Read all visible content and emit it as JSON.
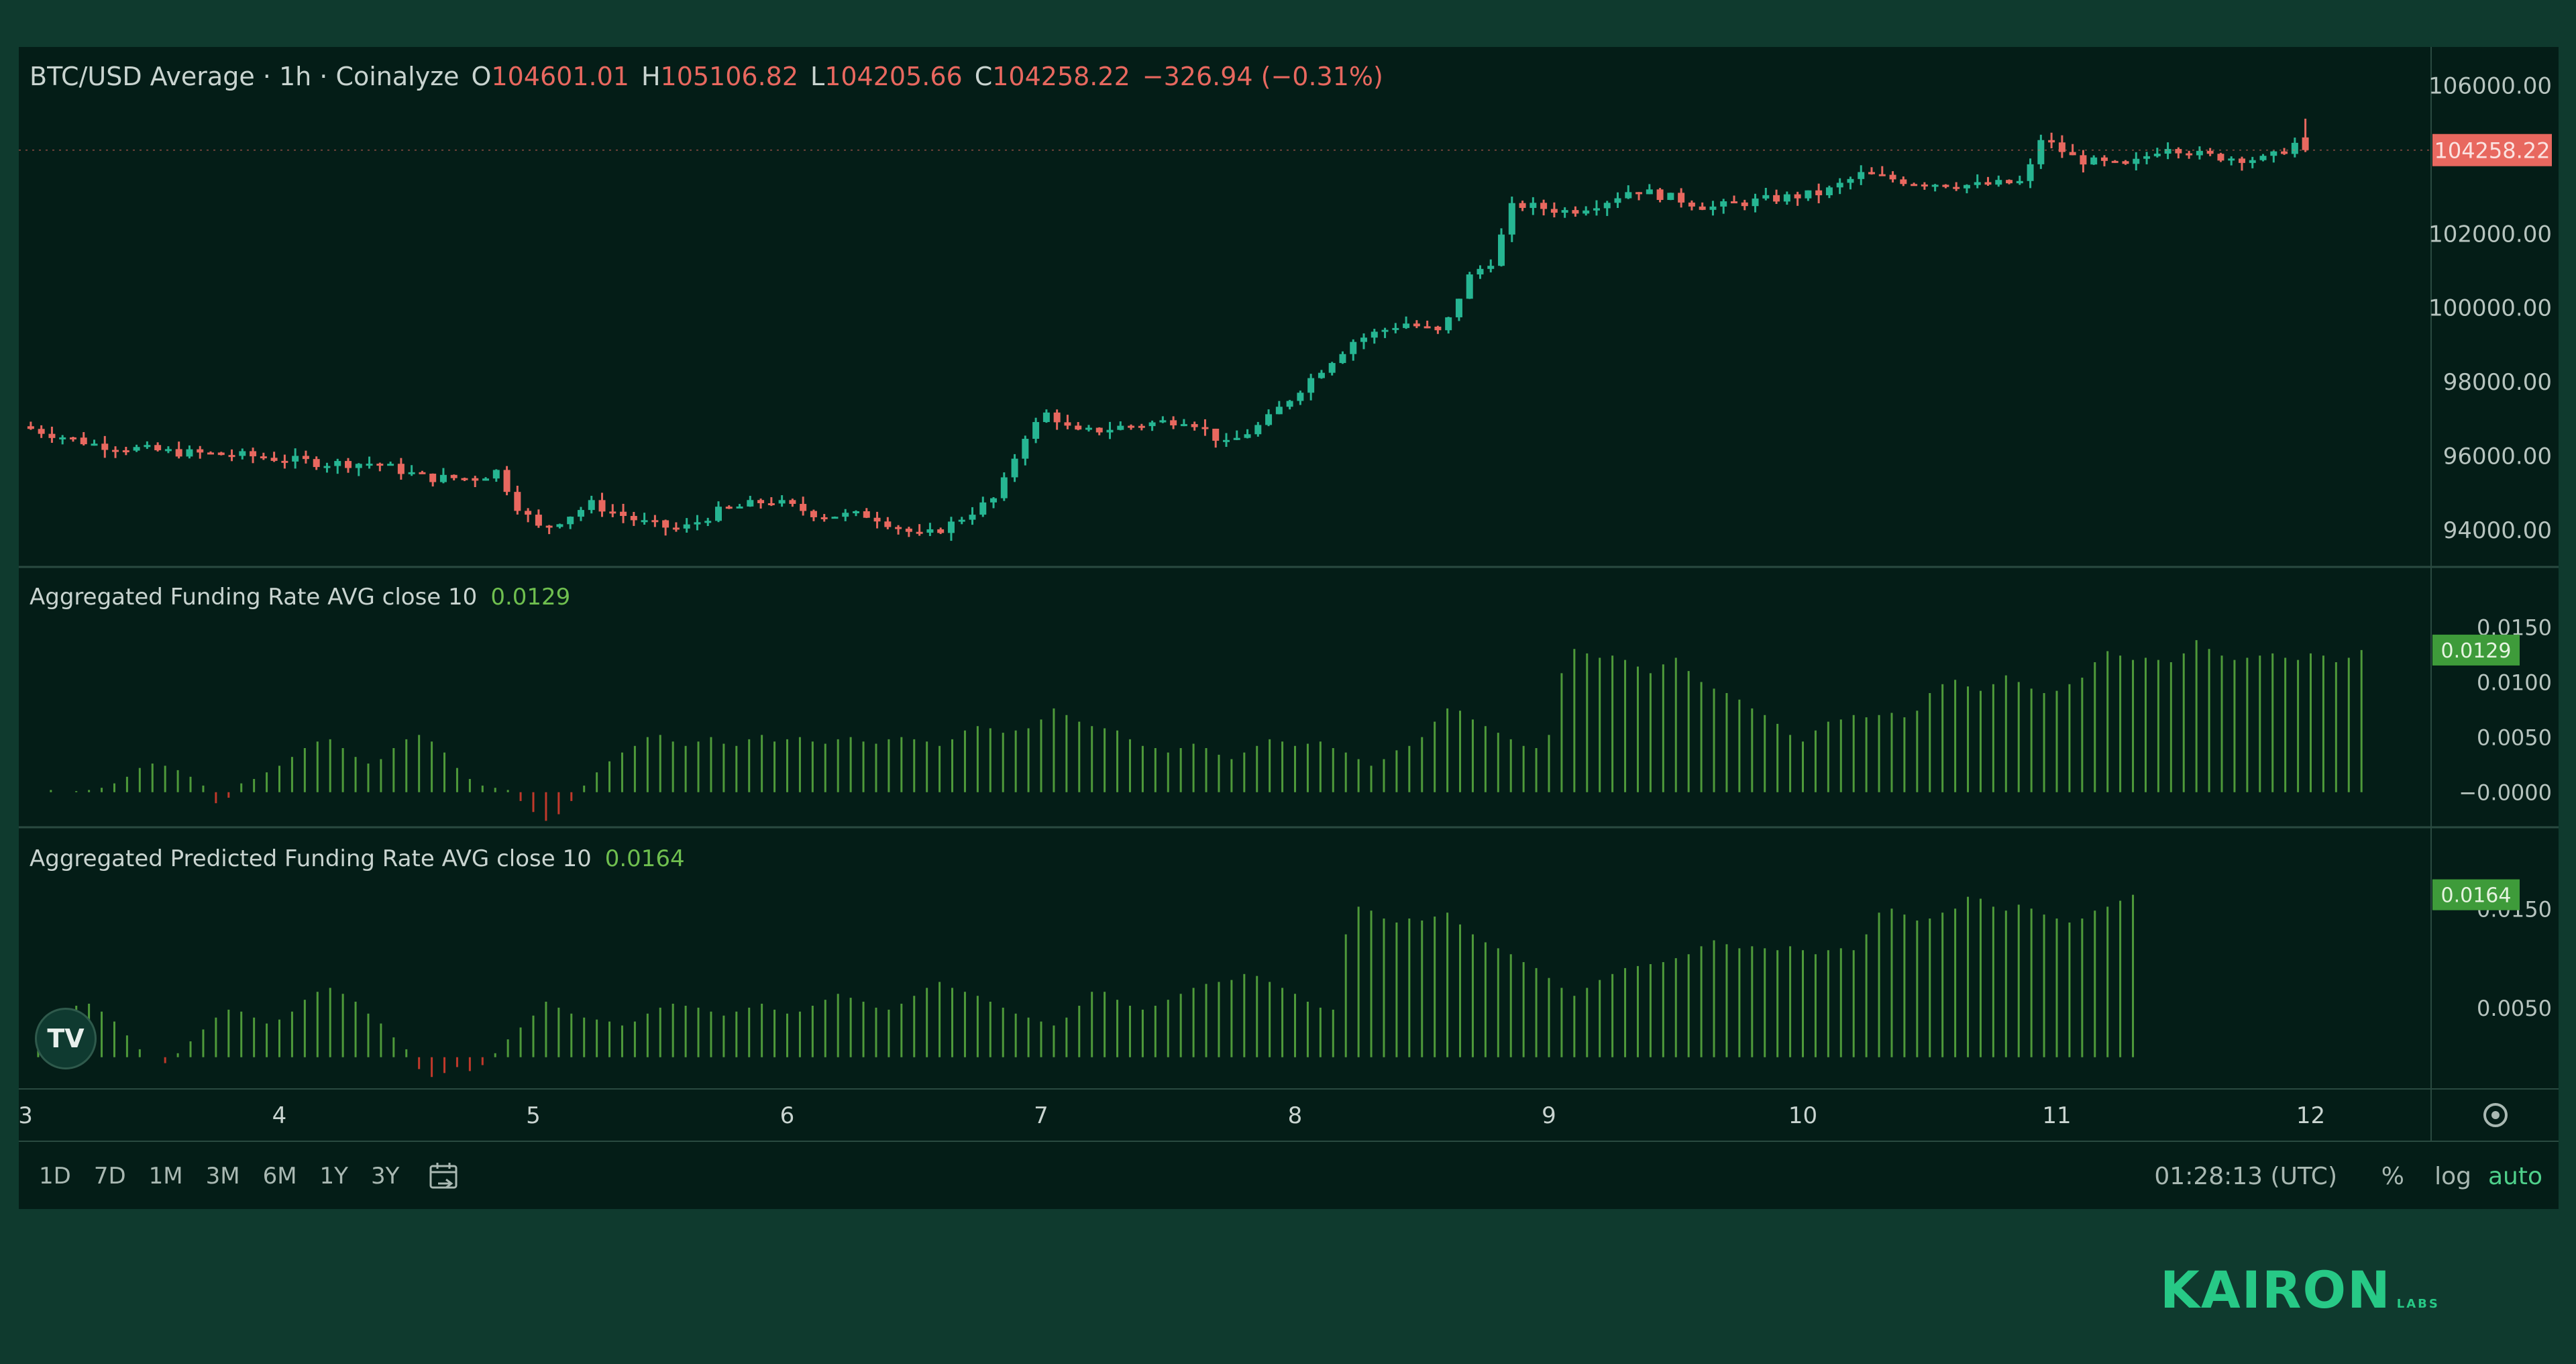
{
  "legend": {
    "symbol": "BTC/USD Average · 1h · Coinalyze",
    "o_label": "O",
    "o": "104601.01",
    "h_label": "H",
    "h": "105106.82",
    "l_label": "L",
    "l": "104205.66",
    "c_label": "C",
    "c": "104258.22",
    "change": "−326.94 (−0.31%)",
    "funding_name": "Aggregated Funding Rate AVG close 10",
    "funding_value": "0.0129",
    "predicted_name": "Aggregated Predicted Funding Rate AVG close 10",
    "predicted_value": "0.0164"
  },
  "price_axis_labels": [
    "106000.00",
    "102000.00",
    "100000.00",
    "98000.00",
    "96000.00",
    "94000.00"
  ],
  "current_price_tag": "104258.22",
  "funding_axis_labels": [
    "0.0150",
    "0.0100",
    "0.0050",
    "−0.0000"
  ],
  "funding_tag": "0.0129",
  "predicted_axis_labels": [
    "0.0150",
    "0.0050"
  ],
  "predicted_tag": "0.0164",
  "time_ranges": [
    "1D",
    "7D",
    "1M",
    "3M",
    "6M",
    "1Y",
    "3Y"
  ],
  "clock": "01:28:13 (UTC)",
  "options": {
    "percent": "%",
    "log": "log",
    "auto": "auto"
  },
  "brand": {
    "name": "KAIRON",
    "sub": "LABS",
    "tv": "TV"
  },
  "colors": {
    "up": "#26b592",
    "down": "#e8685f",
    "funding_pos": "#4e9a3a",
    "funding_neg": "#c0392b",
    "bg": "#041d17"
  },
  "chart_data": [
    {
      "type": "candlestick",
      "title": "BTC/USD Average · 1h · Coinalyze",
      "x_ticks": [
        "3",
        "4",
        "5",
        "6",
        "7",
        "8",
        "9",
        "10",
        "11",
        "12"
      ],
      "ylim": [
        93000,
        106500
      ],
      "price_path": [
        [
          3.0,
          96800
        ],
        [
          3.3,
          96300
        ],
        [
          3.6,
          96100
        ],
        [
          3.9,
          96000
        ],
        [
          4.2,
          95800
        ],
        [
          4.4,
          95800
        ],
        [
          4.6,
          95400
        ],
        [
          4.8,
          95400
        ],
        [
          4.88,
          95600
        ],
        [
          4.95,
          94700
        ],
        [
          5.05,
          94000
        ],
        [
          5.25,
          94700
        ],
        [
          5.45,
          94200
        ],
        [
          5.6,
          94000
        ],
        [
          5.75,
          94500
        ],
        [
          5.95,
          94800
        ],
        [
          6.15,
          94400
        ],
        [
          6.35,
          94400
        ],
        [
          6.55,
          93800
        ],
        [
          6.65,
          94100
        ],
        [
          6.85,
          94900
        ],
        [
          6.95,
          96500
        ],
        [
          7.05,
          97200
        ],
        [
          7.15,
          96600
        ],
        [
          7.35,
          96800
        ],
        [
          7.6,
          97000
        ],
        [
          7.75,
          96300
        ],
        [
          7.9,
          96900
        ],
        [
          8.1,
          98200
        ],
        [
          8.25,
          99100
        ],
        [
          8.45,
          99600
        ],
        [
          8.6,
          99300
        ],
        [
          8.7,
          100800
        ],
        [
          8.8,
          101300
        ],
        [
          8.88,
          102800
        ],
        [
          9.1,
          102600
        ],
        [
          9.25,
          102900
        ],
        [
          9.35,
          103200
        ],
        [
          9.55,
          102900
        ],
        [
          9.65,
          102700
        ],
        [
          9.85,
          102900
        ],
        [
          10.1,
          103100
        ],
        [
          10.25,
          103600
        ],
        [
          10.45,
          103400
        ],
        [
          10.7,
          103300
        ],
        [
          10.9,
          103400
        ],
        [
          10.95,
          104600
        ],
        [
          11.1,
          104000
        ],
        [
          11.3,
          103800
        ],
        [
          11.45,
          104400
        ],
        [
          11.6,
          104100
        ],
        [
          11.85,
          104000
        ],
        [
          12.0,
          104601
        ]
      ],
      "last_candle": {
        "o": 104601.01,
        "h": 105106.82,
        "l": 104205.66,
        "c": 104258.22
      }
    },
    {
      "type": "bar",
      "title": "Aggregated Funding Rate AVG close 10",
      "ylim": [
        -0.003,
        0.016
      ],
      "x_start": 3.0,
      "x_step": 0.05,
      "values": [
        0.0,
        0.0,
        0.0002,
        0.0,
        0.0001,
        0.0002,
        0.0004,
        0.0008,
        0.0014,
        0.0022,
        0.0026,
        0.0024,
        0.002,
        0.0014,
        0.0006,
        -0.001,
        -0.0005,
        0.0008,
        0.0012,
        0.0018,
        0.0024,
        0.0032,
        0.004,
        0.0046,
        0.0048,
        0.004,
        0.0032,
        0.0026,
        0.003,
        0.004,
        0.0048,
        0.0052,
        0.0046,
        0.0036,
        0.0022,
        0.0012,
        0.0006,
        0.0004,
        0.0002,
        -0.0008,
        -0.0018,
        -0.0026,
        -0.002,
        -0.0008,
        0.0006,
        0.0018,
        0.0028,
        0.0036,
        0.0042,
        0.005,
        0.0052,
        0.0046,
        0.0042,
        0.0046,
        0.005,
        0.0044,
        0.0042,
        0.0048,
        0.0052,
        0.0046,
        0.0048,
        0.005,
        0.0046,
        0.0044,
        0.0048,
        0.005,
        0.0046,
        0.0044,
        0.0048,
        0.005,
        0.0048,
        0.0046,
        0.0042,
        0.0048,
        0.0056,
        0.006,
        0.0058,
        0.0054,
        0.0056,
        0.0058,
        0.0066,
        0.0076,
        0.007,
        0.0064,
        0.006,
        0.0058,
        0.0056,
        0.0048,
        0.0042,
        0.004,
        0.0036,
        0.004,
        0.0044,
        0.004,
        0.0034,
        0.003,
        0.0036,
        0.0042,
        0.0048,
        0.0046,
        0.0042,
        0.0044,
        0.0046,
        0.004,
        0.0036,
        0.003,
        0.0024,
        0.003,
        0.0038,
        0.0042,
        0.005,
        0.0064,
        0.0076,
        0.0074,
        0.0066,
        0.006,
        0.0054,
        0.0048,
        0.0042,
        0.004,
        0.0052,
        0.0108,
        0.013,
        0.0126,
        0.0122,
        0.0124,
        0.012,
        0.0114,
        0.0108,
        0.0116,
        0.0122,
        0.011,
        0.01,
        0.0094,
        0.009,
        0.0084,
        0.0076,
        0.007,
        0.0062,
        0.0052,
        0.0046,
        0.0056,
        0.0064,
        0.0066,
        0.007,
        0.0068,
        0.007,
        0.0072,
        0.0068,
        0.0074,
        0.009,
        0.0098,
        0.0102,
        0.0096,
        0.0092,
        0.0098,
        0.0106,
        0.01,
        0.0094,
        0.009,
        0.0092,
        0.0098,
        0.0104,
        0.0118,
        0.0128,
        0.0124,
        0.012,
        0.0122,
        0.012,
        0.0118,
        0.0126,
        0.0138,
        0.013,
        0.0124,
        0.012,
        0.0122,
        0.0124,
        0.0126,
        0.0122,
        0.012,
        0.0126,
        0.0124,
        0.0118,
        0.0122,
        0.0129
      ]
    },
    {
      "type": "bar",
      "title": "Aggregated Predicted Funding Rate AVG close 10",
      "ylim": [
        -0.003,
        0.018
      ],
      "x_start": 3.0,
      "x_step": 0.05,
      "values": [
        0.0,
        0.001,
        0.0026,
        0.004,
        0.0052,
        0.0054,
        0.0046,
        0.0036,
        0.0022,
        0.0008,
        0.0,
        -0.0006,
        0.0004,
        0.0016,
        0.0028,
        0.004,
        0.0048,
        0.0046,
        0.004,
        0.0034,
        0.0038,
        0.0046,
        0.0058,
        0.0066,
        0.007,
        0.0064,
        0.0056,
        0.0044,
        0.0034,
        0.002,
        0.0008,
        -0.0012,
        -0.002,
        -0.0016,
        -0.001,
        -0.0014,
        -0.0008,
        0.0004,
        0.0018,
        0.003,
        0.0042,
        0.0056,
        0.005,
        0.0044,
        0.004,
        0.0038,
        0.0036,
        0.0032,
        0.0036,
        0.0044,
        0.005,
        0.0054,
        0.0052,
        0.005,
        0.0046,
        0.0042,
        0.0046,
        0.005,
        0.0054,
        0.0048,
        0.0044,
        0.0046,
        0.0052,
        0.0058,
        0.0064,
        0.006,
        0.0056,
        0.005,
        0.0048,
        0.0054,
        0.0062,
        0.007,
        0.0076,
        0.007,
        0.0066,
        0.0062,
        0.0056,
        0.005,
        0.0044,
        0.004,
        0.0036,
        0.0032,
        0.004,
        0.0052,
        0.0066,
        0.0066,
        0.0058,
        0.0052,
        0.0048,
        0.0052,
        0.0058,
        0.0064,
        0.007,
        0.0074,
        0.0076,
        0.0078,
        0.0084,
        0.0082,
        0.0076,
        0.007,
        0.0064,
        0.0056,
        0.005,
        0.0048,
        0.0124,
        0.0152,
        0.0148,
        0.014,
        0.0136,
        0.014,
        0.0138,
        0.0142,
        0.0146,
        0.0134,
        0.0124,
        0.0116,
        0.011,
        0.0104,
        0.0096,
        0.009,
        0.008,
        0.007,
        0.0062,
        0.007,
        0.0078,
        0.0084,
        0.009,
        0.0092,
        0.0094,
        0.0096,
        0.01,
        0.0104,
        0.0112,
        0.0118,
        0.0114,
        0.011,
        0.0112,
        0.011,
        0.0108,
        0.0112,
        0.0108,
        0.0104,
        0.0108,
        0.011,
        0.0108,
        0.0124,
        0.0146,
        0.015,
        0.0144,
        0.0138,
        0.014,
        0.0146,
        0.015,
        0.0162,
        0.016,
        0.0152,
        0.0148,
        0.0154,
        0.015,
        0.0144,
        0.014,
        0.0136,
        0.014,
        0.0148,
        0.0152,
        0.0158,
        0.0164
      ]
    }
  ]
}
